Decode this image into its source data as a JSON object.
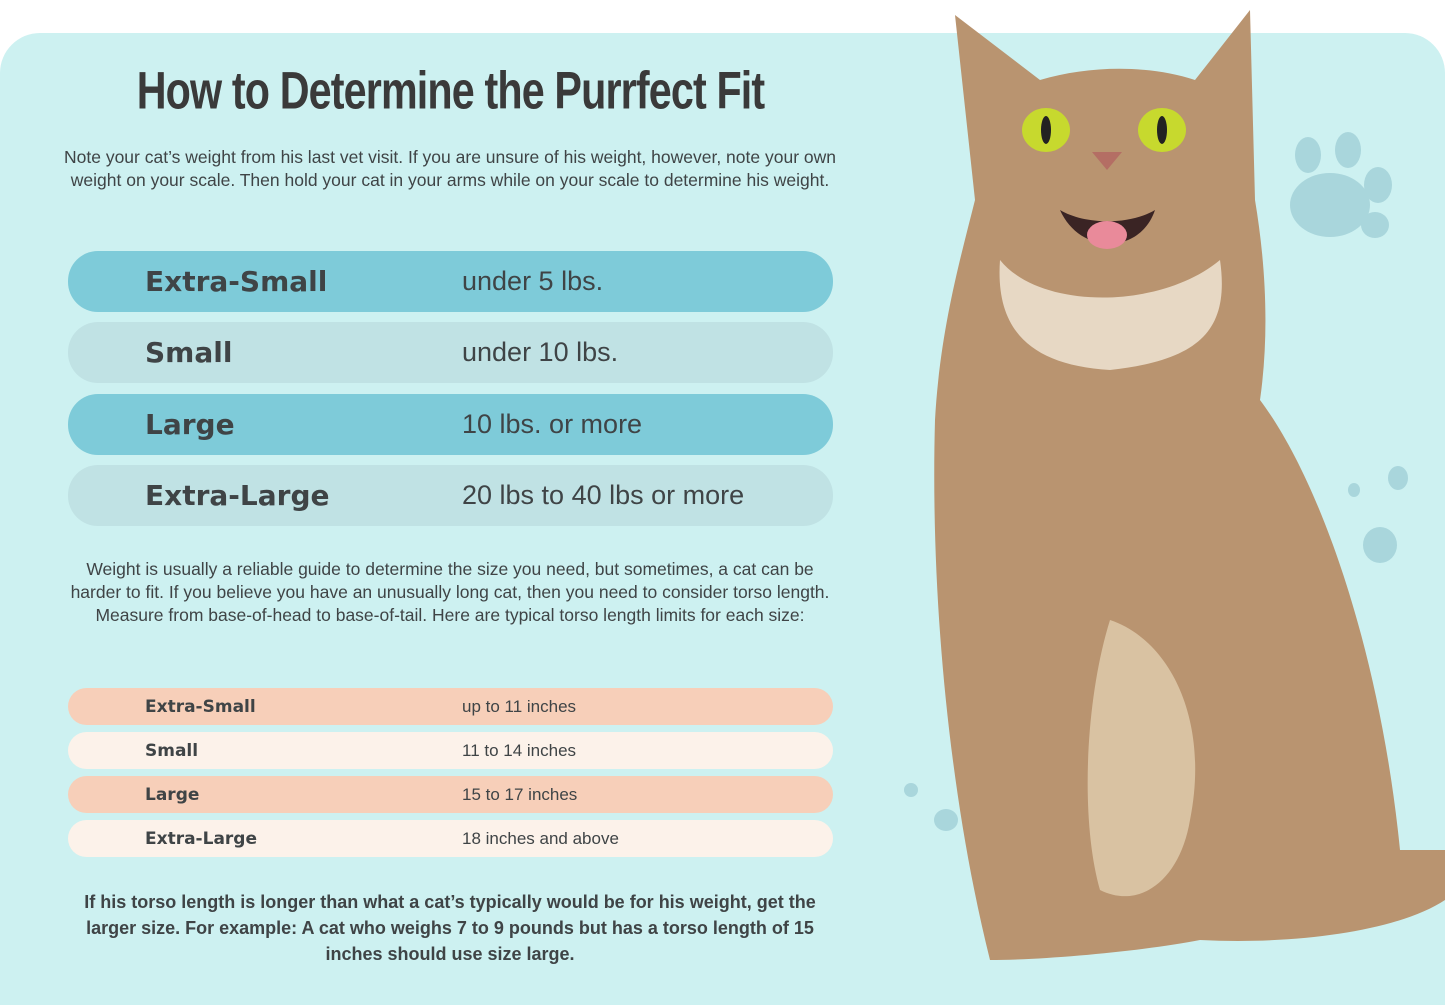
{
  "title": "How to Determine the Purrfect Fit",
  "intro": "Note your cat’s weight from his last vet visit. If you are unsure of his weight, however, note your own weight on your scale. Then hold your cat in your arms while on your scale to determine his weight.",
  "weight_table": [
    {
      "size": "Extra-Small",
      "value": "under 5 lbs."
    },
    {
      "size": "Small",
      "value": "under 10 lbs."
    },
    {
      "size": "Large",
      "value": "10 lbs. or more"
    },
    {
      "size": "Extra-Large",
      "value": "20 lbs to 40 lbs or more"
    }
  ],
  "torso_intro": "Weight is usually a reliable guide to determine the size you need, but sometimes, a cat can be harder to fit. If you believe you have an unusually long cat, then you need to consider torso length. Measure from base-of-head to base-of-tail. Here are typical torso length limits for each size:",
  "torso_table": [
    {
      "size": "Extra-Small",
      "value": "up to 11 inches"
    },
    {
      "size": "Small",
      "value": "11 to 14 inches"
    },
    {
      "size": "Large",
      "value": "15 to 17 inches"
    },
    {
      "size": "Extra-Large",
      "value": "18 inches and above"
    }
  ],
  "note": "If his torso length is longer than what a cat’s typically would be for his weight, get the larger size. For example: A cat who weighs 7 to 9 pounds but has a torso length of 15 inches should use size large.",
  "colors": {
    "background": "#cdf1f1",
    "weight_row_dark": "#7ecbd9",
    "weight_row_light": "#c0e2e4",
    "torso_row_dark": "#f7cfb9",
    "torso_row_light": "#fcf2ea"
  },
  "images": {
    "cat": "tabby-cat-photo",
    "paw": "paw-print-icon"
  }
}
